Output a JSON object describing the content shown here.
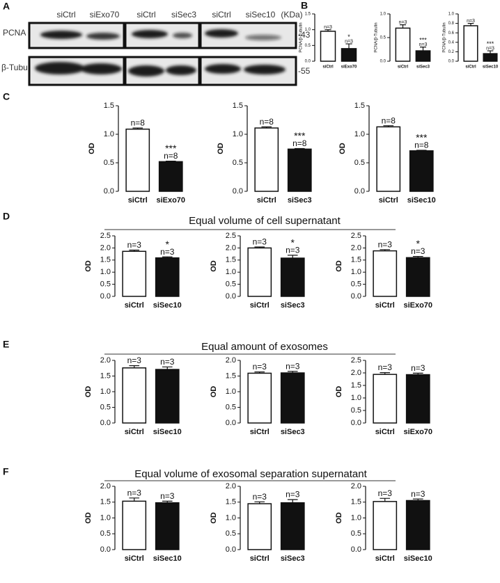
{
  "figure": {
    "panel_labels": [
      "A",
      "B",
      "C",
      "D",
      "E",
      "F"
    ],
    "headings": [
      "Equal volume of cell supernatant",
      "Equal amount of exosomes",
      "Equal volume of exosomal separation supernatant"
    ]
  },
  "blot": {
    "lanes": [
      "siCtrl",
      "siExo70",
      "siCtrl",
      "siSec3",
      "siCtrl",
      "siSec10"
    ],
    "unit": "(KDa)",
    "rows": [
      {
        "name": "PCNA",
        "marker": "-43"
      },
      {
        "name": "β-Tubulin",
        "marker": "-55"
      }
    ]
  },
  "chart_data": [
    {
      "type": "bar",
      "ylabel": "PCNA/β-Tubulin",
      "categories": [
        "siCtrl",
        "siExo70"
      ],
      "values": [
        0.95,
        0.4
      ],
      "errors": [
        0.05,
        0.15
      ],
      "colors": [
        "#ffffff",
        "#111111"
      ],
      "bar_labels": [
        [
          "n=3"
        ],
        [
          "*",
          "n=3"
        ]
      ],
      "ylim": [
        0,
        1.5
      ],
      "yticks": [
        {
          "value": 0,
          "label": "0.0"
        },
        0.5,
        {
          "value": 1,
          "label": "1.0"
        },
        1.5
      ]
    },
    {
      "type": "bar",
      "ylabel": "PCNA/β-Tubulin",
      "categories": [
        "siCtrl",
        "siSec3"
      ],
      "values": [
        0.7,
        0.22
      ],
      "errors": [
        0.07,
        0.08
      ],
      "colors": [
        "#ffffff",
        "#111111"
      ],
      "bar_labels": [
        [
          "n=3"
        ],
        [
          "***",
          "n=3"
        ]
      ],
      "ylim": [
        0,
        1
      ],
      "yticks": [
        {
          "value": 0,
          "label": "0.0"
        },
        0.5,
        {
          "value": 1,
          "label": "1.0"
        }
      ]
    },
    {
      "type": "bar",
      "ylabel": "PCNA/β-Tubulin",
      "categories": [
        "siCtrl",
        "siSec10"
      ],
      "values": [
        0.75,
        0.16
      ],
      "errors": [
        0.05,
        0.06
      ],
      "colors": [
        "#ffffff",
        "#111111"
      ],
      "bar_labels": [
        [
          "n=3"
        ],
        [
          "***",
          "n=3"
        ]
      ],
      "ylim": [
        0,
        1
      ],
      "yticks": [
        {
          "value": 0,
          "label": "0.0"
        },
        0.2,
        0.4,
        0.6,
        0.8,
        {
          "value": 1,
          "label": "1.0"
        }
      ]
    },
    {
      "type": "bar",
      "ylabel": "OD",
      "categories": [
        "siCtrl",
        "siExo70"
      ],
      "values": [
        1.09,
        0.52
      ],
      "errors": [
        0.02,
        0.01
      ],
      "colors": [
        "#ffffff",
        "#111111"
      ],
      "bar_labels": [
        [
          "n=8"
        ],
        [
          "***",
          "n=8"
        ]
      ],
      "ylim": [
        0,
        1.5
      ],
      "yticks": [
        {
          "value": 0,
          "label": "0.0"
        },
        0.5,
        {
          "value": 1,
          "label": "1.0"
        },
        1.5
      ]
    },
    {
      "type": "bar",
      "ylabel": "OD",
      "categories": [
        "siCtrl",
        "siSec3"
      ],
      "values": [
        1.11,
        0.74
      ],
      "errors": [
        0.02,
        0.01
      ],
      "colors": [
        "#ffffff",
        "#111111"
      ],
      "bar_labels": [
        [
          "n=8"
        ],
        [
          "***",
          "n=8"
        ]
      ],
      "ylim": [
        0,
        1.5
      ],
      "yticks": [
        {
          "value": 0,
          "label": "0.0"
        },
        0.5,
        {
          "value": 1,
          "label": "1.0"
        },
        1.5
      ]
    },
    {
      "type": "bar",
      "ylabel": "OD",
      "categories": [
        "siCtrl",
        "siSec10"
      ],
      "values": [
        1.13,
        0.71
      ],
      "errors": [
        0.02,
        0.01
      ],
      "colors": [
        "#ffffff",
        "#111111"
      ],
      "bar_labels": [
        [
          "n=8"
        ],
        [
          "***",
          "n=8"
        ]
      ],
      "ylim": [
        0,
        1.5
      ],
      "yticks": [
        {
          "value": 0,
          "label": "0.0"
        },
        0.5,
        {
          "value": 1,
          "label": "1.0"
        },
        1.5
      ]
    },
    {
      "type": "bar",
      "ylabel": "OD",
      "categories": [
        "siCtrl",
        "siSec10"
      ],
      "values": [
        1.86,
        1.59
      ],
      "errors": [
        0.05,
        0.04
      ],
      "colors": [
        "#ffffff",
        "#111111"
      ],
      "bar_labels": [
        [
          "n=3"
        ],
        [
          "*",
          "n=3"
        ]
      ],
      "ylim": [
        0,
        2.5
      ],
      "yticks": [
        {
          "value": 0,
          "label": "0.0"
        },
        0.5,
        {
          "value": 1,
          "label": "1.0"
        },
        1.5,
        {
          "value": 2,
          "label": "2.0"
        },
        2.5
      ]
    },
    {
      "type": "bar",
      "ylabel": "OD",
      "categories": [
        "siCtrl",
        "siSec3"
      ],
      "values": [
        2.0,
        1.58
      ],
      "errors": [
        0.04,
        0.12
      ],
      "colors": [
        "#ffffff",
        "#111111"
      ],
      "bar_labels": [
        [
          "n=3"
        ],
        [
          "*",
          "n=3"
        ]
      ],
      "ylim": [
        0,
        2.5
      ],
      "yticks": [
        {
          "value": 0,
          "label": "0.0"
        },
        0.5,
        {
          "value": 1,
          "label": "1.0"
        },
        1.5,
        {
          "value": 2,
          "label": "2.0"
        },
        2.5
      ]
    },
    {
      "type": "bar",
      "ylabel": "OD",
      "categories": [
        "siCtrl",
        "siExo70"
      ],
      "values": [
        1.88,
        1.6
      ],
      "errors": [
        0.05,
        0.05
      ],
      "colors": [
        "#ffffff",
        "#111111"
      ],
      "bar_labels": [
        [
          "n=3"
        ],
        [
          "*",
          "n=3"
        ]
      ],
      "ylim": [
        0,
        2.5
      ],
      "yticks": [
        {
          "value": 0,
          "label": "0.0"
        },
        0.5,
        {
          "value": 1,
          "label": "1.0"
        },
        1.5,
        {
          "value": 2,
          "label": "2.0"
        },
        2.5
      ]
    },
    {
      "type": "bar",
      "ylabel": "OD",
      "categories": [
        "siCtrl",
        "siSec10"
      ],
      "values": [
        1.76,
        1.71
      ],
      "errors": [
        0.07,
        0.08
      ],
      "colors": [
        "#ffffff",
        "#111111"
      ],
      "bar_labels": [
        [
          "n=3"
        ],
        [
          "n=3"
        ]
      ],
      "ylim": [
        0,
        2
      ],
      "yticks": [
        {
          "value": 0,
          "label": "0.0"
        },
        0.5,
        {
          "value": 1,
          "label": "1.0"
        },
        1.5,
        {
          "value": 2,
          "label": "2.0"
        }
      ]
    },
    {
      "type": "bar",
      "ylabel": "OD",
      "categories": [
        "siCtrl",
        "siSec3"
      ],
      "values": [
        1.59,
        1.6
      ],
      "errors": [
        0.04,
        0.05
      ],
      "colors": [
        "#ffffff",
        "#111111"
      ],
      "bar_labels": [
        [
          "n=3"
        ],
        [
          "n=3"
        ]
      ],
      "ylim": [
        0,
        2
      ],
      "yticks": [
        {
          "value": 0,
          "label": "0.0"
        },
        0.5,
        {
          "value": 1,
          "label": "1.0"
        },
        1.5,
        {
          "value": 2,
          "label": "2.0"
        }
      ]
    },
    {
      "type": "bar",
      "ylabel": "OD",
      "categories": [
        "siCtrl",
        "siExo70"
      ],
      "values": [
        1.94,
        1.93
      ],
      "errors": [
        0.07,
        0.06
      ],
      "colors": [
        "#ffffff",
        "#111111"
      ],
      "bar_labels": [
        [
          "n=3"
        ],
        [
          "n=3"
        ]
      ],
      "ylim": [
        0,
        2.5
      ],
      "yticks": [
        {
          "value": 0,
          "label": "0.0"
        },
        0.5,
        {
          "value": 1,
          "label": "1.0"
        },
        1.5,
        {
          "value": 2,
          "label": "2.0"
        },
        2.5
      ]
    },
    {
      "type": "bar",
      "ylabel": "OD",
      "categories": [
        "siCtrl",
        "siSec10"
      ],
      "values": [
        1.53,
        1.48
      ],
      "errors": [
        0.1,
        0.05
      ],
      "colors": [
        "#ffffff",
        "#111111"
      ],
      "bar_labels": [
        [
          "n=3"
        ],
        [
          "n=3"
        ]
      ],
      "ylim": [
        0,
        2
      ],
      "yticks": [
        {
          "value": 0,
          "label": "0.0"
        },
        0.5,
        {
          "value": 1,
          "label": "1.0"
        },
        1.5,
        {
          "value": 2,
          "label": "2.0"
        }
      ]
    },
    {
      "type": "bar",
      "ylabel": "OD",
      "categories": [
        "siCtrl",
        "siSec3"
      ],
      "values": [
        1.45,
        1.48
      ],
      "errors": [
        0.06,
        0.1
      ],
      "colors": [
        "#ffffff",
        "#111111"
      ],
      "bar_labels": [
        [
          "n=3"
        ],
        [
          "n=3"
        ]
      ],
      "ylim": [
        0,
        2
      ],
      "yticks": [
        {
          "value": 0,
          "label": "0.0"
        },
        0.5,
        {
          "value": 1,
          "label": "1.0"
        },
        1.5,
        {
          "value": 2,
          "label": "2.0"
        }
      ]
    },
    {
      "type": "bar",
      "ylabel": "OD",
      "categories": [
        "siCtrl",
        "siSec10"
      ],
      "values": [
        1.52,
        1.55
      ],
      "errors": [
        0.1,
        0.05
      ],
      "colors": [
        "#ffffff",
        "#111111"
      ],
      "bar_labels": [
        [
          "n=3"
        ],
        [
          "n=3"
        ]
      ],
      "ylim": [
        0,
        2
      ],
      "yticks": [
        {
          "value": 0,
          "label": "0.0"
        },
        0.5,
        {
          "value": 1,
          "label": "1.0"
        },
        1.5,
        {
          "value": 2,
          "label": "2.0"
        }
      ]
    }
  ]
}
